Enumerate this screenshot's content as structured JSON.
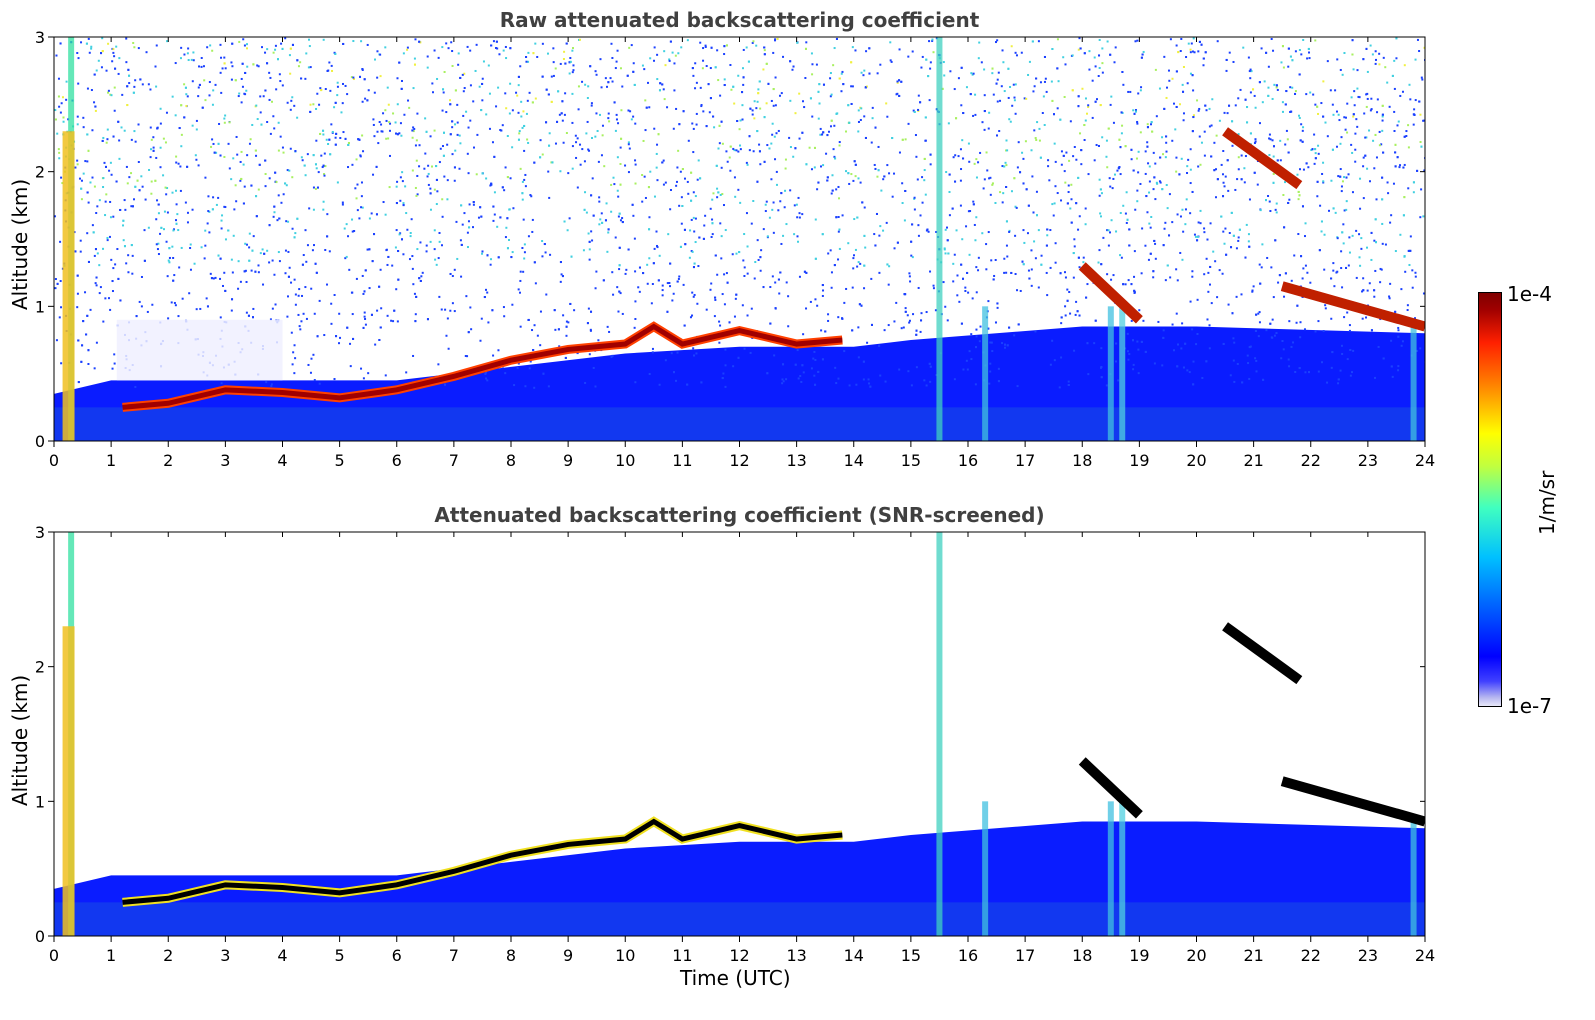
{
  "chart_data": [
    {
      "type": "heatmap",
      "title": "Raw attenuated backscattering coefficient",
      "xlabel": "",
      "ylabel": "Altitude (km)",
      "xlim": [
        0,
        24
      ],
      "ylim": [
        0,
        3
      ],
      "x_ticks": [
        "0",
        "1",
        "2",
        "3",
        "4",
        "5",
        "6",
        "7",
        "8",
        "9",
        "10",
        "11",
        "12",
        "13",
        "14",
        "15",
        "16",
        "17",
        "18",
        "19",
        "20",
        "21",
        "22",
        "23",
        "24"
      ],
      "y_ticks": [
        "0",
        "1",
        "2",
        "3"
      ],
      "layer_top_km": [
        [
          1.2,
          0.25
        ],
        [
          2,
          0.28
        ],
        [
          3,
          0.38
        ],
        [
          4,
          0.36
        ],
        [
          5,
          0.32
        ],
        [
          6,
          0.38
        ],
        [
          7,
          0.48
        ],
        [
          8,
          0.6
        ],
        [
          9,
          0.68
        ],
        [
          10,
          0.72
        ],
        [
          10.5,
          0.85
        ],
        [
          11,
          0.72
        ],
        [
          12,
          0.82
        ],
        [
          13,
          0.72
        ],
        [
          13.8,
          0.75
        ]
      ],
      "high_layers": [
        {
          "x": [
            18.0,
            19.0
          ],
          "y": [
            0.9,
            1.3
          ]
        },
        {
          "x": [
            20.5,
            21.8
          ],
          "y": [
            1.9,
            2.3
          ]
        },
        {
          "x": [
            21.5,
            24.0
          ],
          "y": [
            0.85,
            1.15
          ]
        }
      ],
      "colormap": "jet"
    },
    {
      "type": "heatmap",
      "title": "Attenuated backscattering coefficient (SNR-screened)",
      "xlabel": "Time (UTC)",
      "ylabel": "Altitude (km)",
      "xlim": [
        0,
        24
      ],
      "ylim": [
        0,
        3
      ],
      "x_ticks": [
        "0",
        "1",
        "2",
        "3",
        "4",
        "5",
        "6",
        "7",
        "8",
        "9",
        "10",
        "11",
        "12",
        "13",
        "14",
        "15",
        "16",
        "17",
        "18",
        "19",
        "20",
        "21",
        "22",
        "23",
        "24"
      ],
      "y_ticks": [
        "0",
        "1",
        "2",
        "3"
      ],
      "colormap": "jet"
    }
  ],
  "colorbar": {
    "max_label": "1e-4",
    "min_label": "1e-7",
    "unit_label": "1/m/sr"
  }
}
